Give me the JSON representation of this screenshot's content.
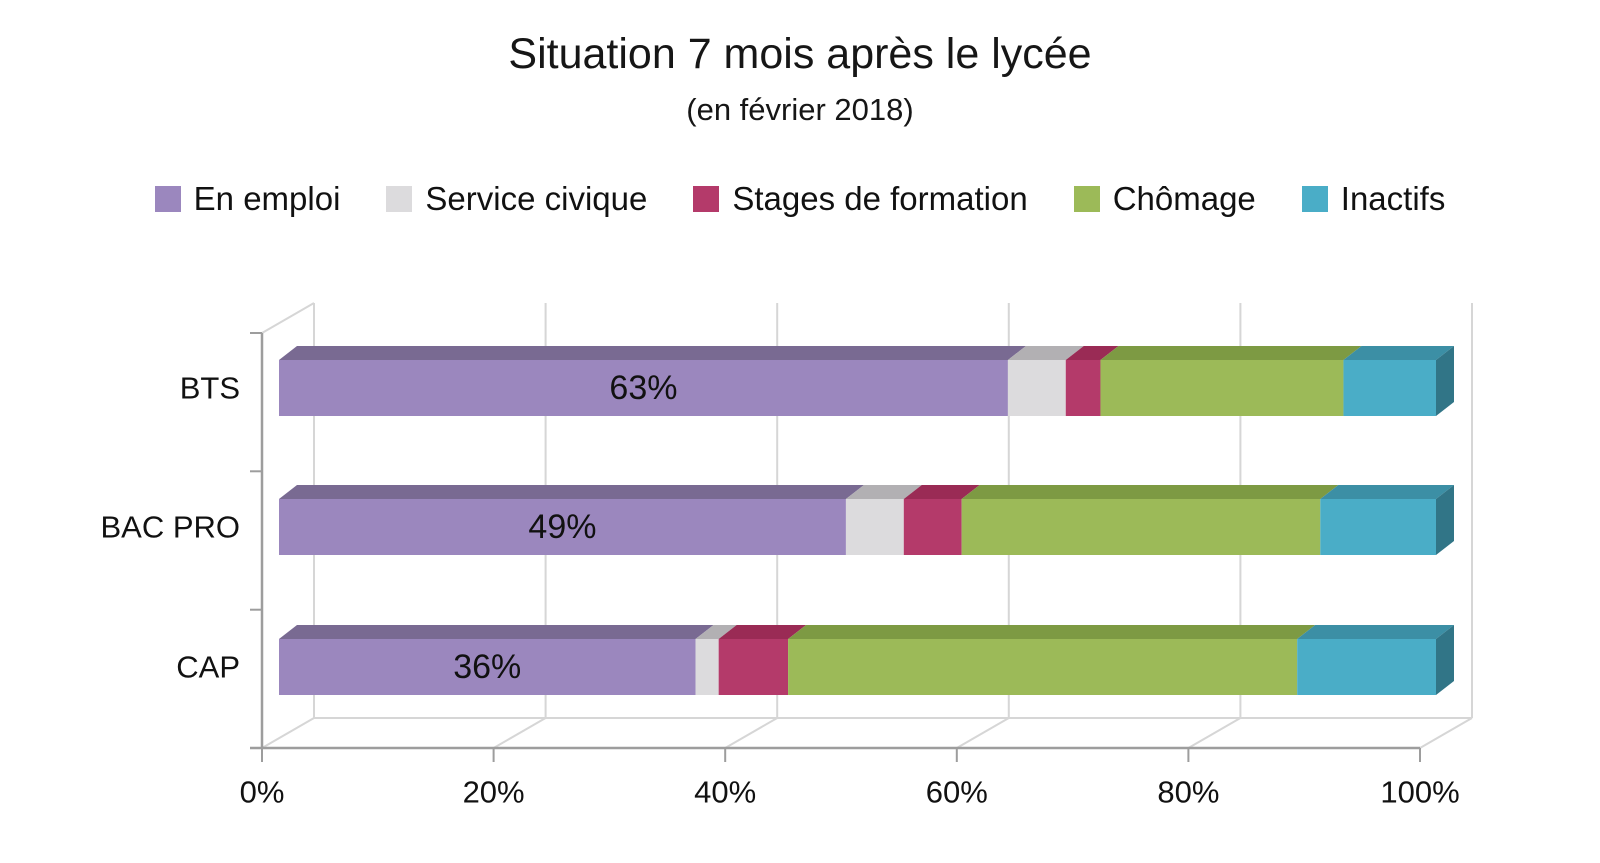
{
  "header": {
    "title": "Situation 7 mois après le lycée",
    "subtitle": "(en février 2018)"
  },
  "chart_data": {
    "type": "bar",
    "orientation": "horizontal",
    "stacked": true,
    "style": "3d",
    "title": "Situation 7 mois après le lycée",
    "subtitle": "(en février 2018)",
    "categories": [
      "BTS",
      "BAC PRO",
      "CAP"
    ],
    "series": [
      {
        "name": "En emploi",
        "color": "#9b87be",
        "color_top": "#796a92",
        "values": [
          63,
          49,
          36
        ]
      },
      {
        "name": "Service civique",
        "color": "#dcdbdd",
        "color_top": "#b2b0b3",
        "values": [
          5,
          5,
          2
        ]
      },
      {
        "name": "Stages de formation",
        "color": "#b43a6a",
        "color_top": "#9a2b55",
        "values": [
          3,
          5,
          6
        ]
      },
      {
        "name": "Chômage",
        "color": "#9cba58",
        "color_top": "#7d9a43",
        "values": [
          21,
          31,
          44
        ]
      },
      {
        "name": "Inactifs",
        "color": "#4aadc7",
        "color_top": "#3c8fa5",
        "values": [
          8,
          10,
          12
        ]
      }
    ],
    "data_labels": {
      "series": "En emploi",
      "values": [
        "63%",
        "49%",
        "36%"
      ]
    },
    "x_ticks": [
      "0%",
      "20%",
      "40%",
      "60%",
      "80%",
      "100%"
    ],
    "xlim": [
      0,
      100
    ],
    "xlabel": "",
    "ylabel": "",
    "grid": true,
    "legend_position": "top",
    "axis_color": "#9d9d9d",
    "grid_color": "#d6d6d6",
    "text_color": "#111111"
  }
}
